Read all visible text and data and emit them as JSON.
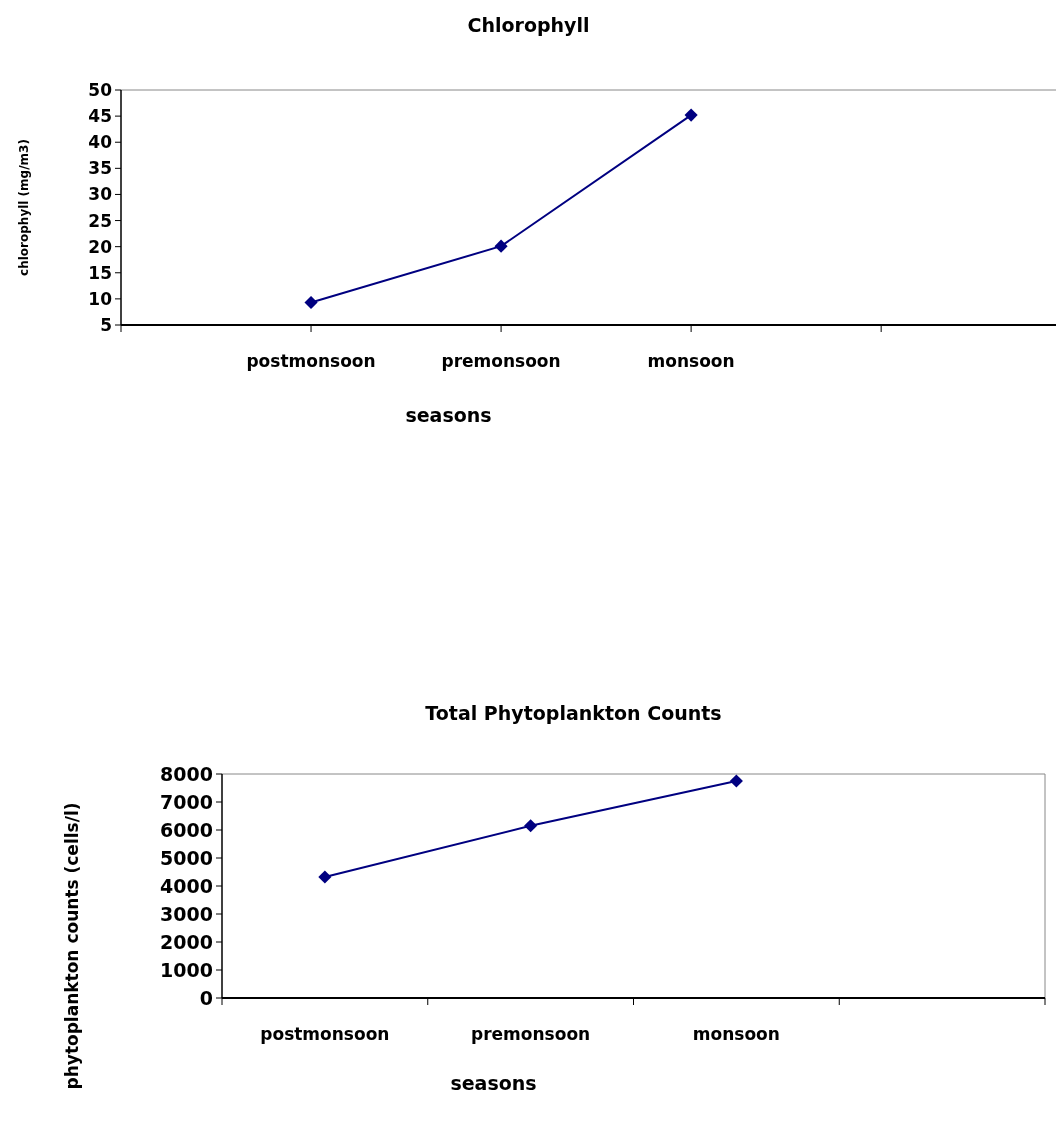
{
  "chart_data": [
    {
      "type": "line",
      "title": "Chlorophyll",
      "xlabel": "seasons",
      "ylabel": "chlorophyll (mg/m3)",
      "categories": [
        null,
        "postmonsoon",
        "premonsoon",
        "monsoon",
        null
      ],
      "series": [
        {
          "color": "#000080",
          "values": [
            null,
            9.3,
            20.1,
            45.2,
            null
          ]
        }
      ],
      "ylim": [
        5,
        50
      ],
      "yticks": [
        5,
        10,
        15,
        20,
        25,
        30,
        35,
        40,
        45,
        50
      ],
      "marker": "diamond"
    },
    {
      "type": "line",
      "title": "Total Phytoplankton Counts",
      "xlabel": "seasons",
      "ylabel": "phytoplankton counts (cells/l)",
      "categories": [
        "postmonsoon",
        "premonsoon",
        "monsoon",
        null
      ],
      "series": [
        {
          "color": "#000080",
          "values": [
            4320,
            6150,
            7750,
            null
          ]
        }
      ],
      "ylim": [
        0,
        8000
      ],
      "yticks": [
        0,
        1000,
        2000,
        3000,
        4000,
        5000,
        6000,
        7000,
        8000
      ],
      "marker": "diamond"
    }
  ]
}
